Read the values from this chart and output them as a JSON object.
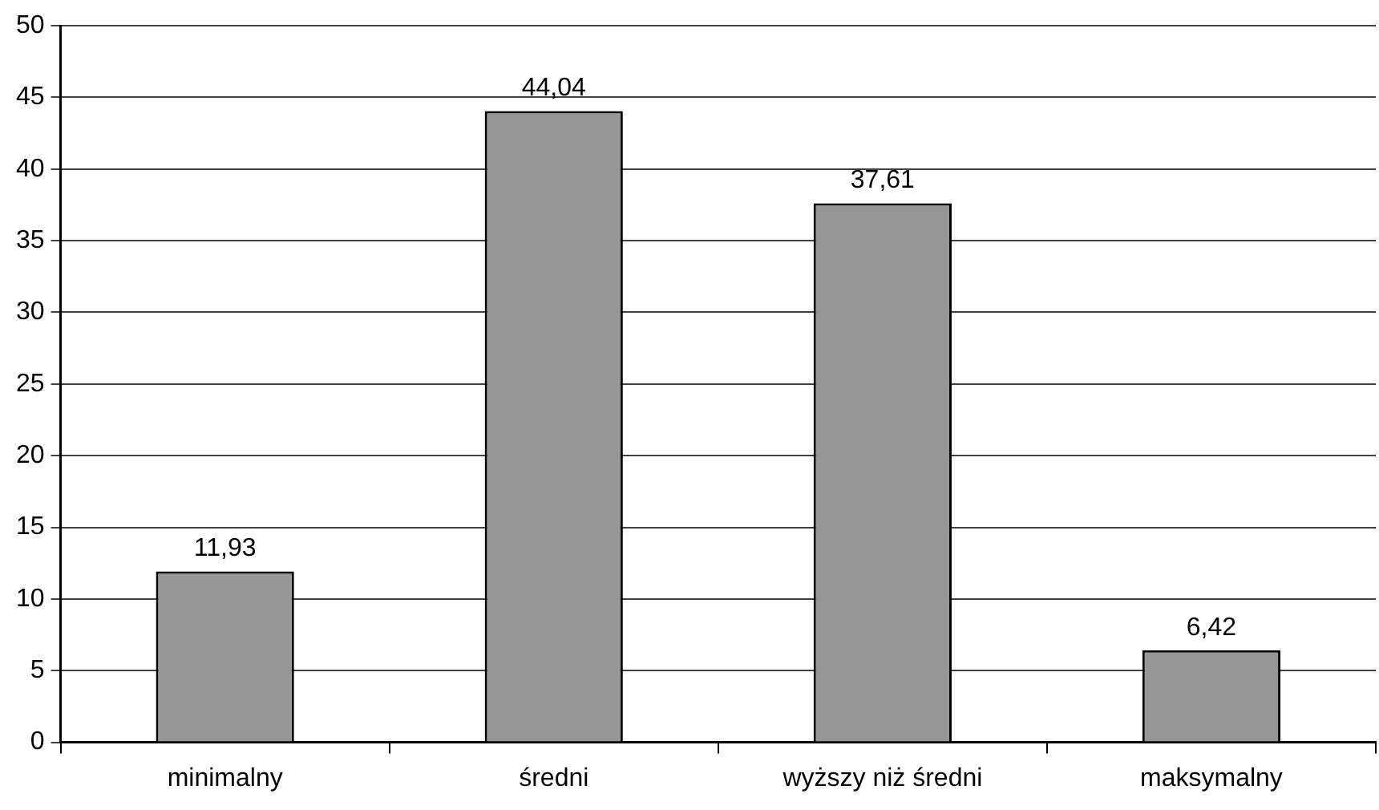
{
  "chart_data": {
    "type": "bar",
    "categories": [
      "minimalny",
      "średni",
      "wyższy niż średni",
      "maksymalny"
    ],
    "values": [
      11.93,
      44.04,
      37.61,
      6.42
    ],
    "color": "#969696",
    "value_labels": [
      "11,93",
      "44,04",
      "37,61",
      "6,42"
    ],
    "ylim": [
      0,
      50
    ],
    "yticks": [
      0,
      5,
      10,
      15,
      20,
      25,
      30,
      35,
      40,
      45,
      50
    ],
    "grid": "y",
    "legend": false
  }
}
